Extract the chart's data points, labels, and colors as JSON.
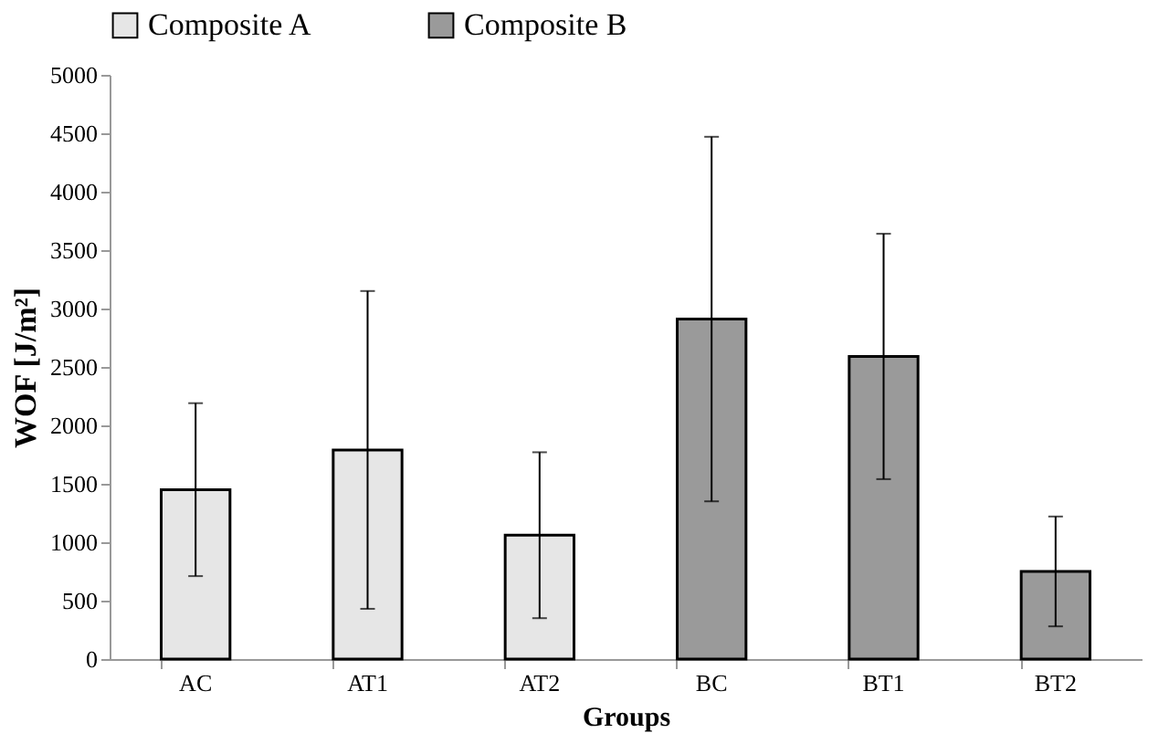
{
  "chart_data": {
    "type": "bar",
    "xlabel": "Groups",
    "ylabel": "WOF [J/m²]",
    "categories": [
      "AC",
      "AT1",
      "AT2",
      "BC",
      "BT1",
      "BT2"
    ],
    "series": [
      {
        "name": "Composite A",
        "color": "#e6e6e6",
        "values": [
          1450,
          1790,
          1060,
          null,
          null,
          null
        ],
        "errors": [
          740,
          1360,
          710,
          null,
          null,
          null
        ]
      },
      {
        "name": "Composite B",
        "color": "#9a9a9a",
        "values": [
          null,
          null,
          null,
          2910,
          2590,
          750
        ],
        "errors": [
          null,
          null,
          null,
          1560,
          1050,
          470
        ]
      }
    ],
    "ylim": [
      0,
      5000
    ],
    "yticks": [
      0,
      500,
      1000,
      1500,
      2000,
      2500,
      3000,
      3500,
      4000,
      4500,
      5000
    ],
    "grid": false,
    "legend": "top"
  }
}
